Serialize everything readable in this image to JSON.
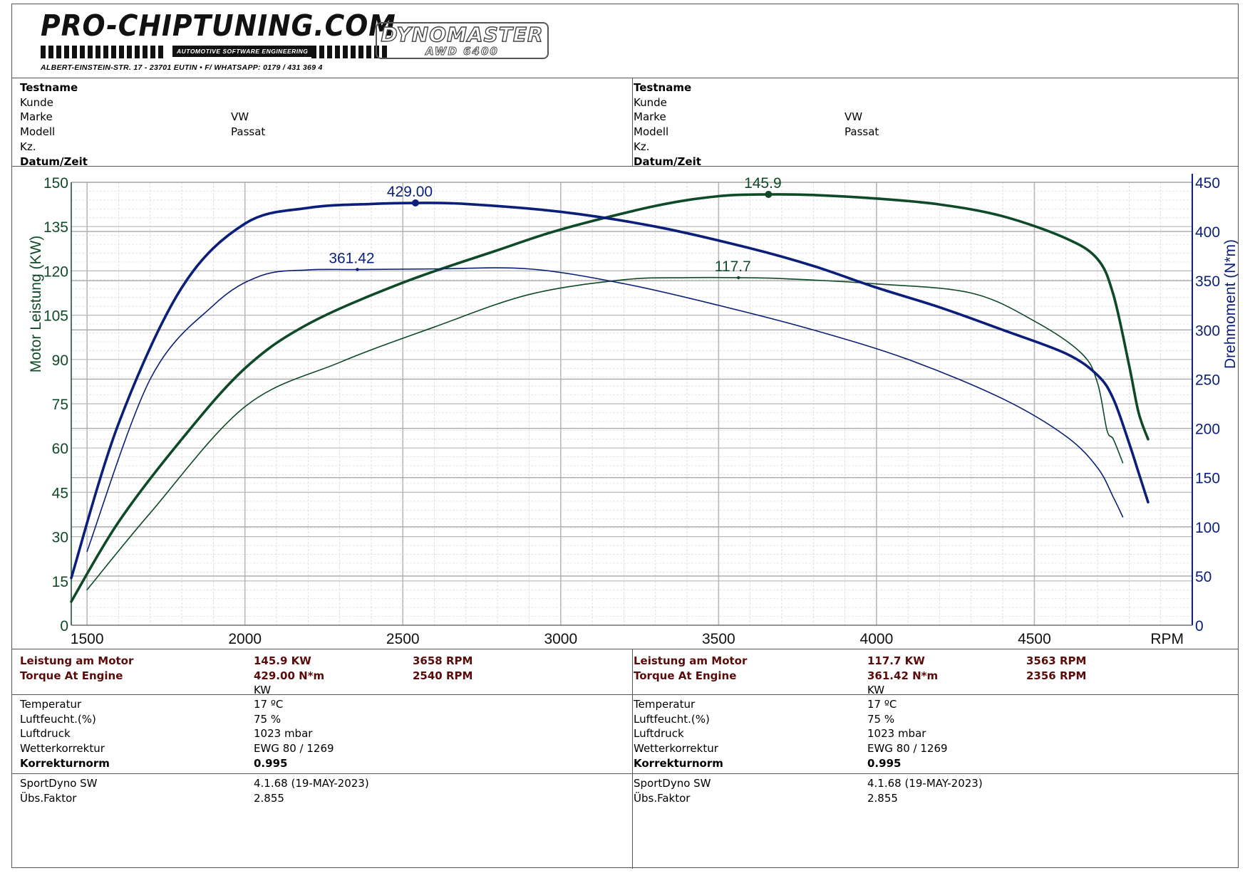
{
  "header": {
    "brand_name": "PRO-CHIPTUNING.COM",
    "brand_tagline": "AUTOMOTIVE SOFTWARE ENGINEERING",
    "brand_address": "ALBERT-EINSTEIN-STR. 17 - 23701 EUTIN • F/ WHATSAPP: 0179 / 431 369 4",
    "dyno_logo_line1": "DYNOMASTER",
    "dyno_logo_line2": "AWD 6400"
  },
  "test_info": {
    "left": {
      "testname_label": "Testname",
      "kunde_label": "Kunde",
      "marke_label": "Marke",
      "marke_value": "VW",
      "modell_label": "Modell",
      "modell_value": "Passat",
      "kz_label": "Kz.",
      "datum_label": "Datum/Zeit"
    },
    "right": {
      "testname_label": "Testname",
      "kunde_label": "Kunde",
      "marke_label": "Marke",
      "marke_value": "VW",
      "modell_label": "Modell",
      "modell_value": "Passat",
      "kz_label": "Kz.",
      "datum_label": "Datum/Zeit"
    }
  },
  "results": {
    "left": {
      "power_label": "Leistung am Motor",
      "power_value": "145.9 KW",
      "power_rpm": "3658 RPM",
      "torque_label": "Torque At Engine",
      "torque_value": "429.00 N*m",
      "torque_rpm": "2540 RPM",
      "unit": "KW",
      "temp_label": "Temperatur",
      "temp_value": "17 ºC",
      "humidity_label": "Luftfeucht.(%)",
      "humidity_value": "75 %",
      "pressure_label": "Luftdruck",
      "pressure_value": "1023 mbar",
      "weather_label": "Wetterkorrektur",
      "weather_value": "EWG 80 / 1269",
      "norm_label": "Korrekturnorm",
      "norm_value": "0.995",
      "sw_label": "SportDyno SW",
      "sw_value": "4.1.68 (19-MAY-2023)",
      "ratio_label": "Übs.Faktor",
      "ratio_value": "2.855"
    },
    "right": {
      "power_label": "Leistung am Motor",
      "power_value": "117.7 KW",
      "power_rpm": "3563 RPM",
      "torque_label": "Torque At Engine",
      "torque_value": "361.42 N*m",
      "torque_rpm": "2356 RPM",
      "unit": "KW",
      "temp_label": "Temperatur",
      "temp_value": "17 ºC",
      "humidity_label": "Luftfeucht.(%)",
      "humidity_value": "75 %",
      "pressure_label": "Luftdruck",
      "pressure_value": "1023 mbar",
      "weather_label": "Wetterkorrektur",
      "weather_value": "EWG 80 / 1269",
      "norm_label": "Korrekturnorm",
      "norm_value": "0.995",
      "sw_label": "SportDyno SW",
      "sw_value": "4.1.68 (19-MAY-2023)",
      "ratio_label": "Übs.Faktor",
      "ratio_value": "2.855"
    }
  },
  "chart_data": {
    "type": "line",
    "ylabel_left": "Motor Leistung (KW)",
    "ylabel_right": "Drehmoment (N*m)",
    "xlabel": "RPM",
    "xlim": [
      1450,
      5000
    ],
    "ylim_left": [
      0,
      150
    ],
    "ylim_right": [
      0,
      450
    ],
    "x_ticks": [
      1500,
      2000,
      2500,
      3000,
      3500,
      4000,
      4500
    ],
    "y_ticks_left": [
      0,
      15,
      30,
      45,
      60,
      75,
      90,
      105,
      120,
      135,
      150
    ],
    "y_ticks_right": [
      0,
      50,
      100,
      150,
      200,
      250,
      300,
      350,
      400,
      450
    ],
    "grid": true,
    "colors": {
      "power": "#0f4a28",
      "torque": "#0b1f7a",
      "axis_left": "#0f4a28",
      "axis_right": "#0b1f7a"
    },
    "series": [
      {
        "axis": "left",
        "weight": "bold",
        "x": [
          1450,
          1600,
          1800,
          2000,
          2200,
          2500,
          2800,
          3000,
          3300,
          3500,
          3658,
          3800,
          4000,
          4200,
          4400,
          4600,
          4700,
          4750,
          4800,
          4830,
          4860
        ],
        "y": [
          8,
          35,
          63,
          87,
          102,
          116,
          127,
          134,
          142,
          145.3,
          145.9,
          145.7,
          144.5,
          142.5,
          138.5,
          131,
          124,
          112,
          88,
          72,
          63
        ],
        "peak_label": "145.9",
        "peak_x": 3658,
        "peak_y": 145.9
      },
      {
        "axis": "left",
        "weight": "thin",
        "x": [
          1500,
          1700,
          2000,
          2300,
          2600,
          2900,
          3200,
          3400,
          3563,
          3700,
          4000,
          4300,
          4500,
          4650,
          4700,
          4730,
          4750,
          4780
        ],
        "y": [
          12,
          38,
          74,
          89,
          101,
          112,
          117,
          117.7,
          117.7,
          117.4,
          115.6,
          112.5,
          103,
          92,
          82,
          66,
          63,
          55
        ],
        "peak_label": "117.7",
        "peak_x": 3563,
        "peak_y": 117.7
      },
      {
        "axis": "right",
        "weight": "bold",
        "x": [
          1450,
          1600,
          1800,
          2000,
          2200,
          2400,
          2540,
          2700,
          3000,
          3300,
          3600,
          3800,
          4000,
          4200,
          4400,
          4600,
          4700,
          4750,
          4800,
          4830,
          4860
        ],
        "y": [
          48,
          205,
          343,
          408,
          424,
          428,
          429,
          428,
          420,
          405,
          383,
          365,
          343,
          323,
          300,
          276,
          254,
          230,
          185,
          155,
          125
        ],
        "peak_label": "429.00",
        "peak_x": 2540,
        "peak_y": 429.0
      },
      {
        "axis": "right",
        "weight": "thin",
        "x": [
          1500,
          1700,
          1900,
          2050,
          2200,
          2356,
          2600,
          2900,
          3200,
          3500,
          3800,
          4100,
          4400,
          4600,
          4700,
          4750,
          4780
        ],
        "y": [
          75,
          250,
          325,
          355,
          361,
          361.4,
          362,
          362,
          347,
          325,
          300,
          270,
          230,
          192,
          160,
          130,
          110
        ],
        "peak_label": "361.42",
        "peak_x": 2356,
        "peak_y": 361.42
      }
    ]
  }
}
